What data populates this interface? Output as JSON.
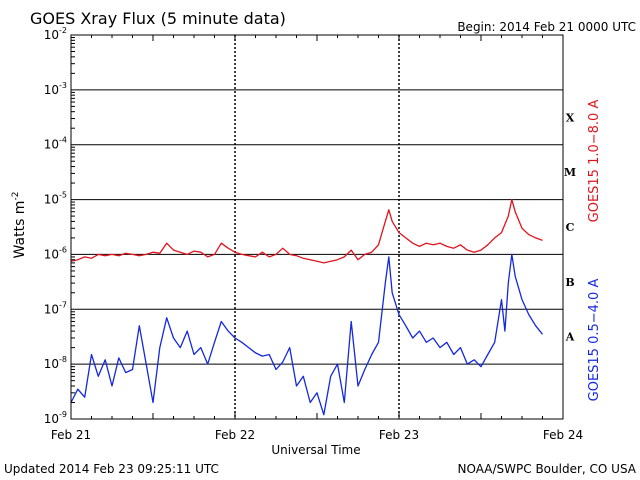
{
  "header": {
    "title": "GOES Xray Flux (5 minute data)",
    "begin": "Begin:  2014 Feb 21 0000 UTC"
  },
  "footer": {
    "updated": "Updated 2014 Feb 23 09:25:11 UTC",
    "credit": "NOAA/SWPC Boulder, CO USA"
  },
  "chart_data": {
    "type": "line",
    "title": "GOES Xray Flux (5 minute data)",
    "xlabel": "Universal Time",
    "ylabel": "Watts m",
    "ylabel_exponent": "-2",
    "y_scale": "log",
    "ylim": [
      1e-09,
      0.01
    ],
    "xlim": [
      "2014-02-21 00:00",
      "2014-02-24 00:00"
    ],
    "grid": true,
    "x_ticks": [
      {
        "x": "2014-02-21 00:00",
        "label": "Feb 21"
      },
      {
        "x": "2014-02-22 00:00",
        "label": "Feb 22"
      },
      {
        "x": "2014-02-23 00:00",
        "label": "Feb 23"
      },
      {
        "x": "2014-02-24 00:00",
        "label": "Feb 24"
      }
    ],
    "y_ticks": [
      {
        "exp": -2,
        "base": "10",
        "sup": "-2"
      },
      {
        "exp": -3,
        "base": "10",
        "sup": "-3"
      },
      {
        "exp": -4,
        "base": "10",
        "sup": "-4"
      },
      {
        "exp": -5,
        "base": "10",
        "sup": "-5"
      },
      {
        "exp": -6,
        "base": "10",
        "sup": "-6"
      },
      {
        "exp": -7,
        "base": "10",
        "sup": "-7"
      },
      {
        "exp": -8,
        "base": "10",
        "sup": "-8"
      },
      {
        "exp": -9,
        "base": "10",
        "sup": "-9"
      }
    ],
    "flare_classes": [
      {
        "label": "X",
        "exp": -3.5
      },
      {
        "label": "M",
        "exp": -4.5
      },
      {
        "label": "C",
        "exp": -5.5
      },
      {
        "label": "B",
        "exp": -6.5
      },
      {
        "label": "A",
        "exp": -7.5
      }
    ],
    "legend": [
      {
        "name": "GOES15 1.0−8.0 A",
        "color": "#e0141e"
      },
      {
        "name": "GOES15 0.5−4.0 A",
        "color": "#1428e0"
      }
    ],
    "series": [
      {
        "name": "GOES15 1.0−8.0 A",
        "color": "#e0141e",
        "points": [
          [
            "2014-02-21 00:00",
            7.5e-07
          ],
          [
            "2014-02-21 01:00",
            8e-07
          ],
          [
            "2014-02-21 02:00",
            9e-07
          ],
          [
            "2014-02-21 03:00",
            8.5e-07
          ],
          [
            "2014-02-21 04:00",
            1e-06
          ],
          [
            "2014-02-21 05:00",
            9.5e-07
          ],
          [
            "2014-02-21 06:00",
            1e-06
          ],
          [
            "2014-02-21 07:00",
            9.5e-07
          ],
          [
            "2014-02-21 08:00",
            1.05e-06
          ],
          [
            "2014-02-21 09:00",
            1e-06
          ],
          [
            "2014-02-21 10:00",
            9.5e-07
          ],
          [
            "2014-02-21 11:00",
            1e-06
          ],
          [
            "2014-02-21 12:00",
            1.1e-06
          ],
          [
            "2014-02-21 13:00",
            1.05e-06
          ],
          [
            "2014-02-21 14:00",
            1.6e-06
          ],
          [
            "2014-02-21 15:00",
            1.2e-06
          ],
          [
            "2014-02-21 16:00",
            1.1e-06
          ],
          [
            "2014-02-21 17:00",
            1e-06
          ],
          [
            "2014-02-21 18:00",
            1.15e-06
          ],
          [
            "2014-02-21 19:00",
            1.1e-06
          ],
          [
            "2014-02-21 20:00",
            9e-07
          ],
          [
            "2014-02-21 21:00",
            1e-06
          ],
          [
            "2014-02-21 22:00",
            1.6e-06
          ],
          [
            "2014-02-21 23:00",
            1.3e-06
          ],
          [
            "2014-02-22 00:00",
            1.1e-06
          ],
          [
            "2014-02-22 01:00",
            1e-06
          ],
          [
            "2014-02-22 02:00",
            9.5e-07
          ],
          [
            "2014-02-22 03:00",
            9e-07
          ],
          [
            "2014-02-22 04:00",
            1.1e-06
          ],
          [
            "2014-02-22 05:00",
            9e-07
          ],
          [
            "2014-02-22 06:00",
            1e-06
          ],
          [
            "2014-02-22 07:00",
            1.3e-06
          ],
          [
            "2014-02-22 08:00",
            1e-06
          ],
          [
            "2014-02-22 09:00",
            9.5e-07
          ],
          [
            "2014-02-22 10:00",
            8.5e-07
          ],
          [
            "2014-02-22 11:00",
            8e-07
          ],
          [
            "2014-02-22 12:00",
            7.5e-07
          ],
          [
            "2014-02-22 13:00",
            7e-07
          ],
          [
            "2014-02-22 14:00",
            7.5e-07
          ],
          [
            "2014-02-22 15:00",
            8e-07
          ],
          [
            "2014-02-22 16:00",
            9e-07
          ],
          [
            "2014-02-22 17:00",
            1.2e-06
          ],
          [
            "2014-02-22 18:00",
            8e-07
          ],
          [
            "2014-02-22 19:00",
            1e-06
          ],
          [
            "2014-02-22 20:00",
            1.1e-06
          ],
          [
            "2014-02-22 21:00",
            1.5e-06
          ],
          [
            "2014-02-22 22:00",
            4e-06
          ],
          [
            "2014-02-22 22:30",
            6.5e-06
          ],
          [
            "2014-02-22 23:00",
            4e-06
          ],
          [
            "2014-02-23 00:00",
            2.5e-06
          ],
          [
            "2014-02-23 01:00",
            2e-06
          ],
          [
            "2014-02-23 02:00",
            1.6e-06
          ],
          [
            "2014-02-23 03:00",
            1.4e-06
          ],
          [
            "2014-02-23 04:00",
            1.6e-06
          ],
          [
            "2014-02-23 05:00",
            1.5e-06
          ],
          [
            "2014-02-23 06:00",
            1.6e-06
          ],
          [
            "2014-02-23 07:00",
            1.4e-06
          ],
          [
            "2014-02-23 08:00",
            1.3e-06
          ],
          [
            "2014-02-23 09:00",
            1.5e-06
          ],
          [
            "2014-02-23 10:00",
            1.2e-06
          ],
          [
            "2014-02-23 11:00",
            1.1e-06
          ],
          [
            "2014-02-23 12:00",
            1.2e-06
          ],
          [
            "2014-02-23 13:00",
            1.5e-06
          ],
          [
            "2014-02-23 14:00",
            2e-06
          ],
          [
            "2014-02-23 15:00",
            2.5e-06
          ],
          [
            "2014-02-23 16:00",
            5e-06
          ],
          [
            "2014-02-23 16:30",
            1e-05
          ],
          [
            "2014-02-23 17:00",
            6e-06
          ],
          [
            "2014-02-23 18:00",
            3e-06
          ],
          [
            "2014-02-23 19:00",
            2.3e-06
          ],
          [
            "2014-02-23 20:00",
            2e-06
          ],
          [
            "2014-02-23 21:00",
            1.8e-06
          ]
        ]
      },
      {
        "name": "GOES15 0.5−4.0 A",
        "color": "#1428e0",
        "points": [
          [
            "2014-02-21 00:00",
            2e-09
          ],
          [
            "2014-02-21 01:00",
            3.5e-09
          ],
          [
            "2014-02-21 02:00",
            2.5e-09
          ],
          [
            "2014-02-21 03:00",
            1.5e-08
          ],
          [
            "2014-02-21 04:00",
            6e-09
          ],
          [
            "2014-02-21 05:00",
            1.2e-08
          ],
          [
            "2014-02-21 06:00",
            4e-09
          ],
          [
            "2014-02-21 07:00",
            1.3e-08
          ],
          [
            "2014-02-21 08:00",
            7e-09
          ],
          [
            "2014-02-21 09:00",
            8e-09
          ],
          [
            "2014-02-21 10:00",
            5e-08
          ],
          [
            "2014-02-21 11:00",
            1e-08
          ],
          [
            "2014-02-21 12:00",
            2e-09
          ],
          [
            "2014-02-21 13:00",
            2e-08
          ],
          [
            "2014-02-21 14:00",
            7e-08
          ],
          [
            "2014-02-21 15:00",
            3e-08
          ],
          [
            "2014-02-21 16:00",
            2e-08
          ],
          [
            "2014-02-21 17:00",
            4e-08
          ],
          [
            "2014-02-21 18:00",
            1.5e-08
          ],
          [
            "2014-02-21 19:00",
            2e-08
          ],
          [
            "2014-02-21 20:00",
            1e-08
          ],
          [
            "2014-02-21 21:00",
            2.5e-08
          ],
          [
            "2014-02-21 22:00",
            6e-08
          ],
          [
            "2014-02-21 23:00",
            4e-08
          ],
          [
            "2014-02-22 00:00",
            3e-08
          ],
          [
            "2014-02-22 01:00",
            2.5e-08
          ],
          [
            "2014-02-22 02:00",
            2e-08
          ],
          [
            "2014-02-22 03:00",
            1.6e-08
          ],
          [
            "2014-02-22 04:00",
            1.4e-08
          ],
          [
            "2014-02-22 05:00",
            1.5e-08
          ],
          [
            "2014-02-22 06:00",
            8e-09
          ],
          [
            "2014-02-22 07:00",
            1.1e-08
          ],
          [
            "2014-02-22 08:00",
            2e-08
          ],
          [
            "2014-02-22 09:00",
            4e-09
          ],
          [
            "2014-02-22 10:00",
            6e-09
          ],
          [
            "2014-02-22 11:00",
            2e-09
          ],
          [
            "2014-02-22 12:00",
            3e-09
          ],
          [
            "2014-02-22 13:00",
            1.2e-09
          ],
          [
            "2014-02-22 14:00",
            6e-09
          ],
          [
            "2014-02-22 15:00",
            1e-08
          ],
          [
            "2014-02-22 16:00",
            2e-09
          ],
          [
            "2014-02-22 17:00",
            6e-08
          ],
          [
            "2014-02-22 18:00",
            4e-09
          ],
          [
            "2014-02-22 19:00",
            8e-09
          ],
          [
            "2014-02-22 20:00",
            1.5e-08
          ],
          [
            "2014-02-22 21:00",
            2.5e-08
          ],
          [
            "2014-02-22 22:00",
            3e-07
          ],
          [
            "2014-02-22 22:30",
            9e-07
          ],
          [
            "2014-02-22 23:00",
            2e-07
          ],
          [
            "2014-02-23 00:00",
            8e-08
          ],
          [
            "2014-02-23 01:00",
            5e-08
          ],
          [
            "2014-02-23 02:00",
            3e-08
          ],
          [
            "2014-02-23 03:00",
            4e-08
          ],
          [
            "2014-02-23 04:00",
            2.5e-08
          ],
          [
            "2014-02-23 05:00",
            3e-08
          ],
          [
            "2014-02-23 06:00",
            2e-08
          ],
          [
            "2014-02-23 07:00",
            2.5e-08
          ],
          [
            "2014-02-23 08:00",
            1.5e-08
          ],
          [
            "2014-02-23 09:00",
            2e-08
          ],
          [
            "2014-02-23 10:00",
            1e-08
          ],
          [
            "2014-02-23 11:00",
            1.2e-08
          ],
          [
            "2014-02-23 12:00",
            9e-09
          ],
          [
            "2014-02-23 13:00",
            1.5e-08
          ],
          [
            "2014-02-23 14:00",
            2.5e-08
          ],
          [
            "2014-02-23 15:00",
            1.5e-07
          ],
          [
            "2014-02-23 15:30",
            4e-08
          ],
          [
            "2014-02-23 16:00",
            3e-07
          ],
          [
            "2014-02-23 16:30",
            1e-06
          ],
          [
            "2014-02-23 17:00",
            4e-07
          ],
          [
            "2014-02-23 18:00",
            1.5e-07
          ],
          [
            "2014-02-23 19:00",
            8e-08
          ],
          [
            "2014-02-23 20:00",
            5e-08
          ],
          [
            "2014-02-23 21:00",
            3.5e-08
          ]
        ]
      }
    ]
  }
}
